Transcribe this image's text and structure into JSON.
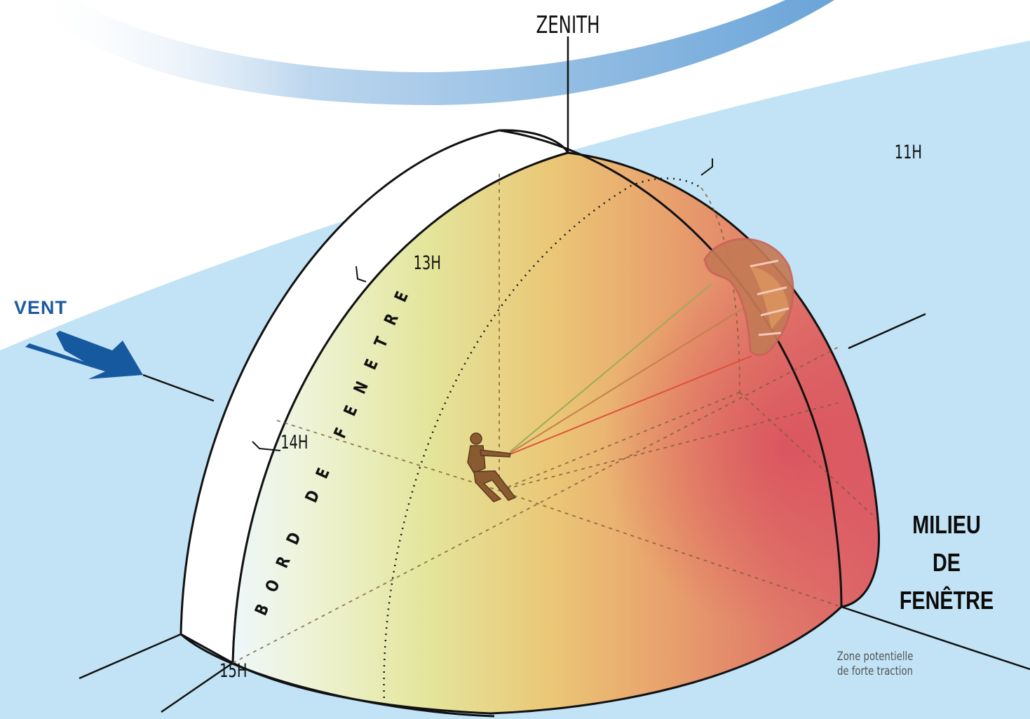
{
  "labels": {
    "zenith": "ZENITH",
    "h11": "11H",
    "h13": "13H",
    "h14": "14H",
    "h15": "15H",
    "wind": "VENT",
    "window_edge": "BORD DE FENETRE",
    "window_center_line1": "MILIEU",
    "window_center_line2": "DE",
    "window_center_line3": "FENÊTRE",
    "traction_zone_line1": "Zone potentielle",
    "traction_zone_line2": "de forte traction"
  },
  "colors": {
    "sky": "#c2e3f5",
    "cloud_band": "#7fb3de",
    "wind_arrow": "#17599f",
    "dome_edge_light": "#eaf5fb",
    "dome_mid_yellow": "#e4e79c",
    "dome_orange": "#e9b36c",
    "dome_red": "#dc5a63",
    "kite": "#c98a5a"
  }
}
